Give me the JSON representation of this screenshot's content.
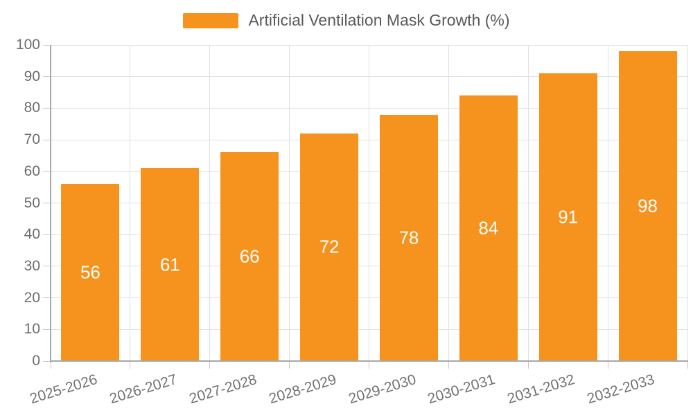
{
  "chart_data": {
    "type": "bar",
    "legend_label": "Artificial Ventilation Mask Growth (%)",
    "categories": [
      "2025-2026",
      "2026-2027",
      "2027-2028",
      "2028-2029",
      "2029-2030",
      "2030-2031",
      "2031-2032",
      "2032-2033"
    ],
    "values": [
      56,
      61,
      66,
      72,
      78,
      84,
      91,
      98
    ],
    "title": "",
    "xlabel": "",
    "ylabel": "",
    "ylim": [
      0,
      100
    ],
    "ytick_step": 10,
    "grid": true,
    "legend_position": "top-center",
    "bar_color": "#f6921e",
    "value_label_color": "#ffffff",
    "grid_color": "#e0e0e0",
    "axis_line_color": "#a8a8a8",
    "tick_text_color": "#6e6e6e"
  }
}
